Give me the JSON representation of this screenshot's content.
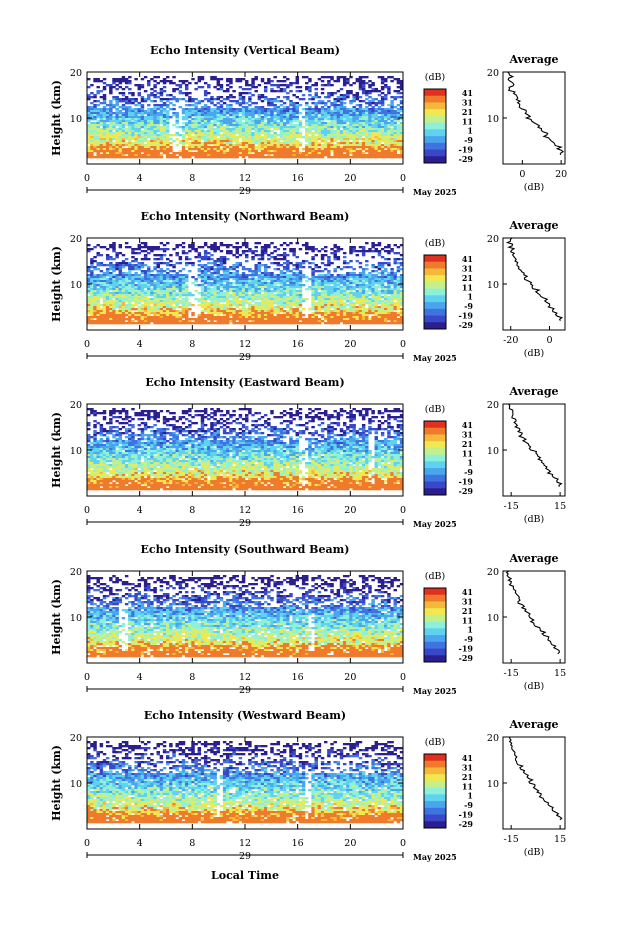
{
  "colors": {
    "scale": [
      "#2b1f8f",
      "#3848c8",
      "#3f74e0",
      "#4aa6ec",
      "#5fd2f0",
      "#8ef0d8",
      "#c4f08c",
      "#f0e850",
      "#f6b83a",
      "#f07a2c",
      "#e03020"
    ],
    "axis": "#000000",
    "profile": "#000000"
  },
  "chart_data": [
    {
      "type": "heatmap",
      "title": "Echo Intensity (Vertical Beam)",
      "ylabel": "Height (km)",
      "ylim": [
        0,
        20
      ],
      "y_ticks": [
        "20",
        "10"
      ],
      "x_ticks": [
        "0",
        "4",
        "8",
        "12",
        "16",
        "20",
        "0"
      ],
      "xlim": [
        0,
        24
      ],
      "date_day": "29",
      "date_label": "May 2025",
      "colorbar": {
        "unit": "(dB)",
        "ticks": [
          "41",
          "31",
          "21",
          "11",
          "1",
          "-9",
          "-19",
          "-29"
        ]
      },
      "gaps_hours": [
        [
          6.3,
          7.1
        ],
        [
          16.0,
          16.6
        ]
      ],
      "average": {
        "title": "Average",
        "xlabel": "(dB)",
        "x_ticks": [
          "0",
          "20"
        ],
        "xlim": [
          -10,
          22
        ],
        "y_ticks": [
          "20",
          "10"
        ],
        "height_km": [
          2,
          3,
          4,
          5,
          6,
          7,
          8,
          9,
          10,
          11,
          12,
          13,
          14,
          15,
          16,
          17,
          18,
          19,
          20
        ],
        "db": [
          20,
          19,
          17,
          14,
          12,
          10,
          8,
          5,
          3,
          1,
          -1,
          -2,
          -3,
          -4,
          -6,
          -5,
          -7,
          -6,
          -7
        ]
      }
    },
    {
      "type": "heatmap",
      "title": "Echo Intensity (Northward Beam)",
      "ylabel": "Height (km)",
      "ylim": [
        0,
        20
      ],
      "y_ticks": [
        "20",
        "10"
      ],
      "x_ticks": [
        "0",
        "4",
        "8",
        "12",
        "16",
        "20",
        "0"
      ],
      "xlim": [
        0,
        24
      ],
      "date_day": "29",
      "date_label": "May 2025",
      "colorbar": {
        "unit": "(dB)",
        "ticks": [
          "41",
          "31",
          "21",
          "11",
          "1",
          "-9",
          "-19",
          "-29"
        ]
      },
      "gaps_hours": [
        [
          7.6,
          8.6
        ],
        [
          16.4,
          17.0
        ]
      ],
      "average": {
        "title": "Average",
        "xlabel": "(dB)",
        "x_ticks": [
          "-20",
          "0"
        ],
        "xlim": [
          -24,
          8
        ],
        "y_ticks": [
          "20",
          "10"
        ],
        "height_km": [
          2,
          3,
          4,
          5,
          6,
          7,
          8,
          9,
          10,
          11,
          12,
          13,
          14,
          15,
          16,
          17,
          18,
          19,
          20
        ],
        "db": [
          6,
          4,
          2,
          0,
          -2,
          -4,
          -6,
          -8,
          -10,
          -12,
          -14,
          -15,
          -16,
          -18,
          -19,
          -19,
          -20,
          -21,
          -20
        ]
      }
    },
    {
      "type": "heatmap",
      "title": "Echo Intensity (Eastward Beam)",
      "ylabel": "Height (km)",
      "ylim": [
        0,
        20
      ],
      "y_ticks": [
        "20",
        "10"
      ],
      "x_ticks": [
        "0",
        "4",
        "8",
        "12",
        "16",
        "20",
        "0"
      ],
      "xlim": [
        0,
        24
      ],
      "date_day": "29",
      "date_label": "May 2025",
      "colorbar": {
        "unit": "(dB)",
        "ticks": [
          "41",
          "31",
          "21",
          "11",
          "1",
          "-9",
          "-19",
          "-29"
        ]
      },
      "gaps_hours": [
        [
          16.2,
          16.7
        ],
        [
          21.4,
          21.9
        ]
      ],
      "average": {
        "title": "Average",
        "xlabel": "(dB)",
        "x_ticks": [
          "-15",
          "15"
        ],
        "xlim": [
          -20,
          18
        ],
        "y_ticks": [
          "20",
          "10"
        ],
        "height_km": [
          2,
          3,
          4,
          5,
          6,
          7,
          8,
          9,
          10,
          11,
          12,
          13,
          14,
          15,
          16,
          17,
          18,
          19,
          20
        ],
        "db": [
          15,
          13,
          11,
          8,
          6,
          4,
          2,
          0,
          -3,
          -5,
          -7,
          -9,
          -10,
          -12,
          -13,
          -14,
          -15,
          -16,
          -16
        ]
      }
    },
    {
      "type": "heatmap",
      "title": "Echo Intensity (Southward Beam)",
      "ylabel": "Height (km)",
      "ylim": [
        0,
        20
      ],
      "y_ticks": [
        "20",
        "10"
      ],
      "x_ticks": [
        "0",
        "4",
        "8",
        "12",
        "16",
        "20",
        "0"
      ],
      "xlim": [
        0,
        24
      ],
      "date_day": "29",
      "date_label": "May 2025",
      "colorbar": {
        "unit": "(dB)",
        "ticks": [
          "41",
          "31",
          "21",
          "11",
          "1",
          "-9",
          "-19",
          "-29"
        ]
      },
      "gaps_hours": [
        [
          2.3,
          3.1
        ],
        [
          16.8,
          17.2
        ]
      ],
      "average": {
        "title": "Average",
        "xlabel": "(dB)",
        "x_ticks": [
          "-15",
          "15"
        ],
        "xlim": [
          -20,
          18
        ],
        "y_ticks": [
          "20",
          "10"
        ],
        "height_km": [
          2,
          3,
          4,
          5,
          6,
          7,
          8,
          9,
          10,
          11,
          12,
          13,
          14,
          15,
          16,
          17,
          18,
          19,
          20
        ],
        "db": [
          14,
          12,
          10,
          7,
          5,
          2,
          0,
          -2,
          -4,
          -6,
          -8,
          -10,
          -11,
          -12,
          -14,
          -15,
          -16,
          -17,
          -17
        ]
      }
    },
    {
      "type": "heatmap",
      "title": "Echo Intensity (Westward Beam)",
      "ylabel": "Height (km)",
      "ylim": [
        0,
        20
      ],
      "y_ticks": [
        "20",
        "10"
      ],
      "x_ticks": [
        "0",
        "4",
        "8",
        "12",
        "16",
        "20",
        "0"
      ],
      "xlim": [
        0,
        24
      ],
      "date_day": "29",
      "date_label": "May 2025",
      "xlabel": "Local Time",
      "colorbar": {
        "unit": "(dB)",
        "ticks": [
          "41",
          "31",
          "21",
          "11",
          "1",
          "-9",
          "-19",
          "-29"
        ]
      },
      "gaps_hours": [
        [
          9.8,
          10.3
        ],
        [
          16.5,
          17.0
        ]
      ],
      "average": {
        "title": "Average",
        "xlabel": "(dB)",
        "x_ticks": [
          "-15",
          "15"
        ],
        "xlim": [
          -20,
          18
        ],
        "y_ticks": [
          "20",
          "10"
        ],
        "height_km": [
          2,
          3,
          4,
          5,
          6,
          7,
          8,
          9,
          10,
          11,
          12,
          13,
          14,
          15,
          16,
          17,
          18,
          19,
          20
        ],
        "db": [
          15,
          13,
          10,
          8,
          5,
          3,
          1,
          -1,
          -3,
          -5,
          -7,
          -9,
          -11,
          -12,
          -13,
          -14,
          -15,
          -15,
          -16
        ]
      }
    }
  ]
}
